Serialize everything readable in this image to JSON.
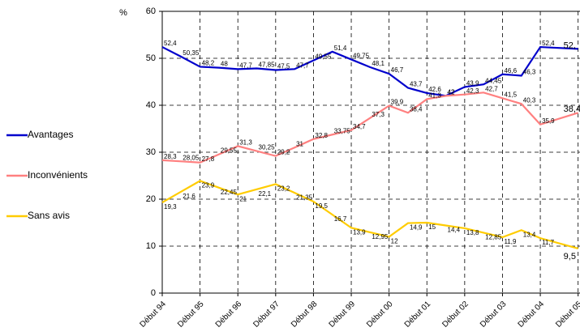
{
  "chart_data": {
    "type": "line",
    "y_label": "%",
    "x": [
      1994,
      1994.5,
      1995,
      1995.5,
      1996,
      1996.5,
      1997,
      1997.5,
      1998,
      1998.5,
      1999,
      1999.5,
      2000,
      2000.5,
      2001,
      2001.5,
      2002,
      2002.5,
      2003,
      2003.5,
      2004,
      2005
    ],
    "series": [
      {
        "name": "Avantages",
        "color": "#0000cc",
        "values": [
          52.4,
          50.35,
          48.2,
          48,
          47.7,
          47.85,
          47.5,
          47.7,
          49.55,
          51.4,
          49.75,
          48.1,
          46.7,
          43.7,
          42.6,
          42,
          43.9,
          44.45,
          46.6,
          46.3,
          52.4,
          52
        ],
        "value_labels": [
          "52,4",
          "50,35",
          "48,2",
          "48",
          "47,7",
          "47,85",
          "47,5",
          "47,7",
          "49,55",
          "51,4",
          "49,75",
          "48,1",
          "46,7",
          "43,7",
          "42,6",
          "42",
          "43,9",
          "44,45",
          "46,6",
          "46,3",
          "52,4",
          "52,"
        ]
      },
      {
        "name": "Inconvénients",
        "color": "#ff8080",
        "values": [
          28.3,
          28.05,
          27.8,
          29.55,
          31.3,
          30.25,
          29.2,
          31,
          32.8,
          33.75,
          34.7,
          37.3,
          39.9,
          38.4,
          41.3,
          42,
          42.3,
          42.7,
          41.5,
          40.3,
          35.9,
          38.4
        ],
        "value_labels": [
          "28,3",
          "28,05",
          "27,8",
          "29,55",
          "31,3",
          "30,25",
          "29,2",
          "31",
          "32,8",
          "33,75",
          "34,7",
          "37,3",
          "39,9",
          "38,4",
          "41,3",
          "42",
          "42,3",
          "42,7",
          "41,5",
          "40,3",
          "35,9",
          "38,4"
        ]
      },
      {
        "name": "Sans avis",
        "color": "#ffcc00",
        "values": [
          19.3,
          21.6,
          23.9,
          22.45,
          21,
          22.1,
          23.2,
          21.35,
          19.5,
          16.7,
          13.9,
          12.95,
          12,
          14.9,
          15,
          14.4,
          13.8,
          12.85,
          11.9,
          13.4,
          11.7,
          9.5
        ],
        "value_labels": [
          "19,3",
          "21,6",
          "23,9",
          "22,45",
          "21",
          "22,1",
          "23,2",
          "21,35",
          "19,5",
          "16,7",
          "13,9",
          "12,95",
          "12",
          "14,9",
          "15",
          "14,4",
          "13,8",
          "12,85",
          "11,9",
          "13,4",
          "11,7",
          "9,5"
        ]
      }
    ],
    "xlim": [
      1994,
      2005.05
    ],
    "xticks": [
      {
        "value": 1994,
        "label": "Début 94"
      },
      {
        "value": 1995,
        "label": "Début 95"
      },
      {
        "value": 1996,
        "label": "Début 96"
      },
      {
        "value": 1997,
        "label": "Début 97"
      },
      {
        "value": 1998,
        "label": "Début 98"
      },
      {
        "value": 1999,
        "label": "Début 99"
      },
      {
        "value": 2000,
        "label": "Début 00"
      },
      {
        "value": 2001,
        "label": "Début 01"
      },
      {
        "value": 2002,
        "label": "Début 02"
      },
      {
        "value": 2003,
        "label": "Début 03"
      },
      {
        "value": 2004,
        "label": "Début 04"
      },
      {
        "value": 2005,
        "label": "Début 05"
      }
    ],
    "ylim": [
      0,
      60
    ],
    "yticks": [
      0,
      10,
      20,
      30,
      40,
      50,
      60
    ],
    "grid": true,
    "legend": "left"
  }
}
